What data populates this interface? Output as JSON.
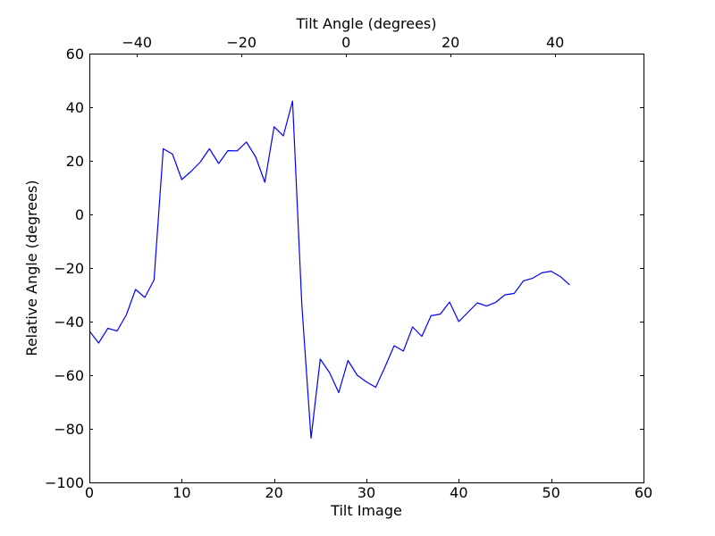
{
  "chart_data": {
    "type": "line",
    "title": "",
    "xlabel": "Tilt Image",
    "ylabel": "Relative Angle (degrees)",
    "top_xlabel": "Tilt Angle (degrees)",
    "xlim": [
      0,
      60
    ],
    "ylim": [
      -100,
      60
    ],
    "top_xlim": [
      -49.1,
      56.9
    ],
    "x_ticks": [
      0,
      10,
      20,
      30,
      40,
      50,
      60
    ],
    "y_ticks": [
      -100,
      -80,
      -60,
      -40,
      -20,
      0,
      20,
      40,
      60
    ],
    "top_x_ticks": [
      -40,
      -20,
      0,
      20,
      40
    ],
    "x_tick_labels": [
      "0",
      "10",
      "20",
      "30",
      "40",
      "50",
      "60"
    ],
    "y_tick_labels": [
      "−100",
      "−80",
      "−60",
      "−40",
      "−20",
      "0",
      "20",
      "40",
      "60"
    ],
    "top_x_tick_labels": [
      "−40",
      "−20",
      "0",
      "20",
      "40"
    ],
    "grid": false,
    "line_color": "#0000ff",
    "series": [
      {
        "x": [
          0,
          1,
          2,
          3,
          4,
          5,
          6,
          7,
          8,
          9,
          10,
          11,
          12,
          13,
          14,
          15,
          16,
          17,
          18,
          19,
          20,
          21,
          22,
          23,
          24,
          25,
          26,
          27,
          28,
          29,
          30,
          31,
          32,
          33,
          34,
          35,
          36,
          37,
          38,
          39,
          40,
          41,
          42,
          43,
          44,
          45,
          46,
          47,
          48,
          49,
          50,
          51,
          52
        ],
        "values": [
          -43.5,
          -48,
          -42.5,
          -43.5,
          -37.5,
          -28,
          -31,
          -24.5,
          24.5,
          22.5,
          13,
          16,
          19.5,
          24.5,
          19,
          23.8,
          23.7,
          27,
          21.5,
          12,
          32.7,
          29.3,
          42.3,
          -33.5,
          -83.5,
          -54,
          -59,
          -66.5,
          -54.5,
          -60,
          -62.5,
          -64.5,
          -57,
          -49,
          -51,
          -42,
          -45.5,
          -37.8,
          -37.2,
          -32.7,
          -40,
          -36.5,
          -33,
          -34.2,
          -32.8,
          -30,
          -29.5,
          -24.8,
          -23.8,
          -21.8,
          -21.2,
          -23.2,
          -26.3
        ]
      }
    ]
  }
}
